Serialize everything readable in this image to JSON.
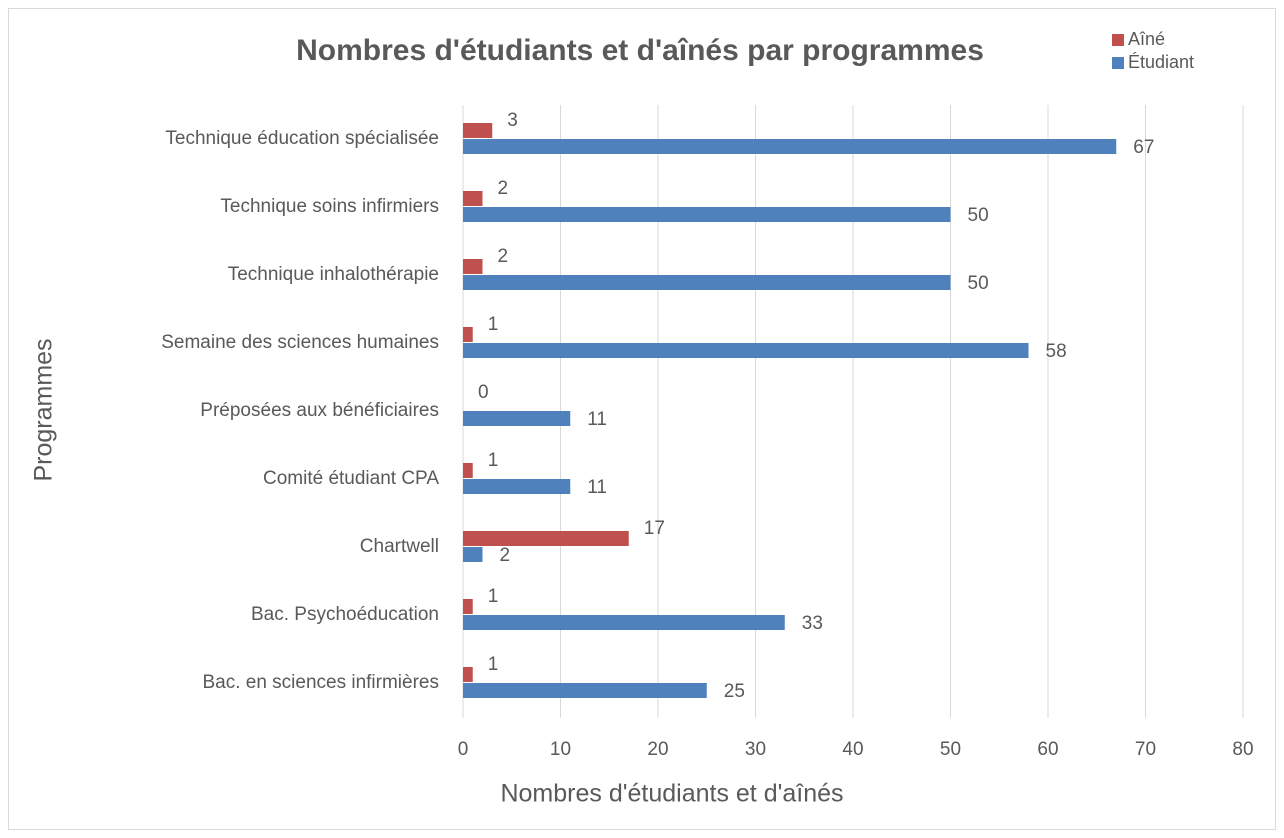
{
  "chart_data": {
    "type": "bar",
    "orientation": "horizontal",
    "title": "Nombres d'étudiants et d'aînés par programmes",
    "xlabel": "Nombres d'étudiants et d'aînés",
    "ylabel": "Programmes",
    "categories": [
      "Technique éducation spécialisée",
      "Technique soins infirmiers",
      "Technique inhalothérapie",
      "Semaine des sciences humaines",
      "Préposées aux bénéficiaires",
      "Comité étudiant CPA",
      "Chartwell",
      "Bac. Psychoéducation",
      "Bac. en sciences infirmières"
    ],
    "series": [
      {
        "name": "Aîné",
        "color": "#c0504d",
        "values": [
          3,
          2,
          2,
          1,
          0,
          1,
          17,
          1,
          1
        ]
      },
      {
        "name": "Étudiant",
        "color": "#4f81bd",
        "values": [
          67,
          50,
          50,
          58,
          11,
          11,
          2,
          33,
          25
        ]
      }
    ],
    "xlim": [
      0,
      80
    ],
    "xticks": [
      0,
      10,
      20,
      30,
      40,
      50,
      60,
      70,
      80
    ],
    "grid": true,
    "legend": "top-right"
  }
}
